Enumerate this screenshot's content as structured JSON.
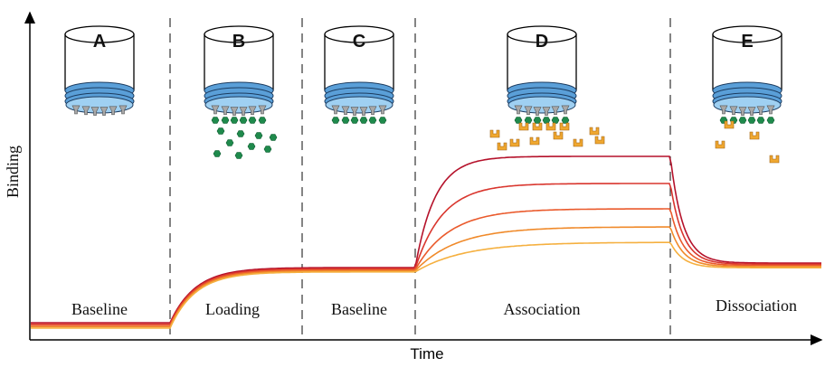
{
  "axes": {
    "x_label": "Time",
    "y_label": "Binding"
  },
  "steps": [
    {
      "letter": "A",
      "phase": "Baseline"
    },
    {
      "letter": "B",
      "phase": "Loading"
    },
    {
      "letter": "C",
      "phase": "Baseline"
    },
    {
      "letter": "D",
      "phase": "Association"
    },
    {
      "letter": "E",
      "phase": "Dissociation"
    }
  ]
}
